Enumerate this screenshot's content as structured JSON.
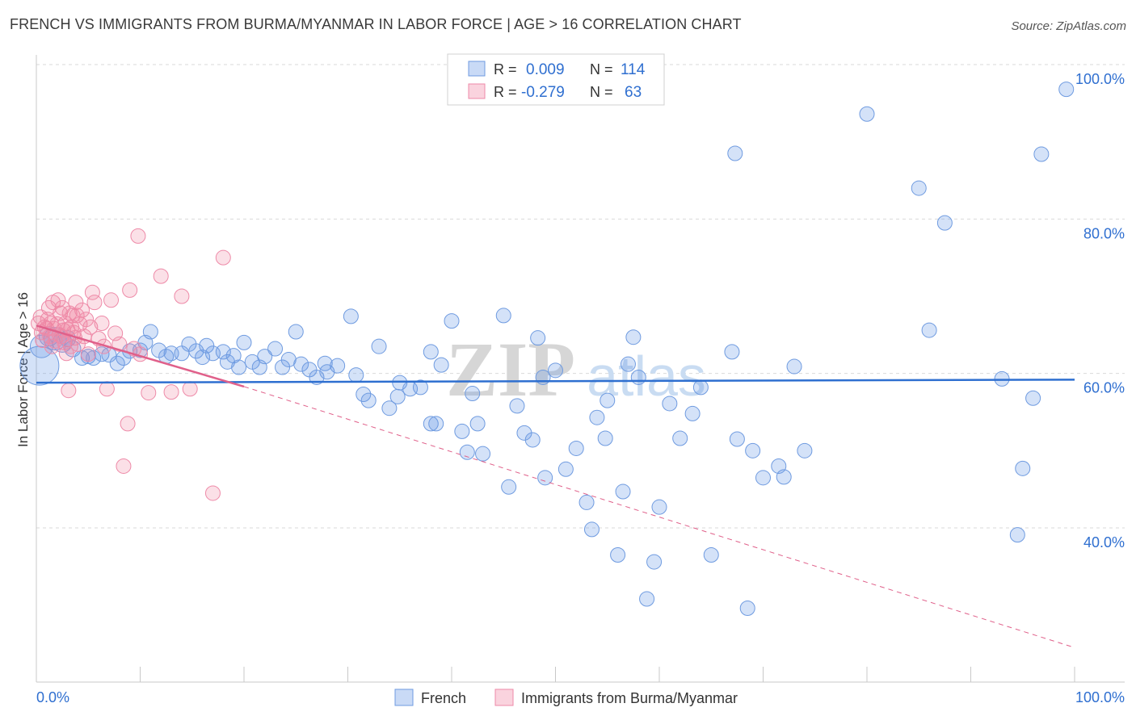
{
  "title": "FRENCH VS IMMIGRANTS FROM BURMA/MYANMAR IN LABOR FORCE | AGE > 16 CORRELATION CHART",
  "source": "Source: ZipAtlas.com",
  "watermark": {
    "zip": "ZIP",
    "atlas": "atlas"
  },
  "colors": {
    "french_fill": "rgba(100,150,230,0.28)",
    "french_stroke": "#6f9be0",
    "french_line": "#2e6fd0",
    "burma_fill": "rgba(240,130,160,0.25)",
    "burma_stroke": "#ee8aa8",
    "burma_line": "#e0608a",
    "value_text": "#2f6fd0",
    "grid": "#d9d9d9"
  },
  "legend": {
    "rows": [
      {
        "r_label": "R =",
        "r_value": "0.009",
        "n_label": "N =",
        "n_value": "114"
      },
      {
        "r_label": "R =",
        "r_value": "-0.279",
        "n_label": "N =",
        "n_value": "63"
      }
    ]
  },
  "chart_data": {
    "type": "scatter",
    "ylabel": "In Labor Force | Age > 16",
    "x_tick_labels": [
      "0.0%",
      "100.0%"
    ],
    "y_tick_labels": [
      "100.0%",
      "80.0%",
      "60.0%",
      "40.0%"
    ],
    "y_tick_values": [
      100,
      80,
      60,
      40
    ],
    "xlim": [
      0,
      100
    ],
    "ylim": [
      22,
      104
    ],
    "series": [
      {
        "name": "French",
        "R": 0.009,
        "N": 114,
        "trend": {
          "x": [
            0,
            100
          ],
          "y": [
            58.8,
            59.2
          ]
        },
        "points": [
          [
            0.3,
            61.0,
            24
          ],
          [
            0.5,
            63.5,
            14
          ],
          [
            1.2,
            64.8,
            12
          ],
          [
            1.8,
            64.5,
            14
          ],
          [
            2.5,
            64.0,
            12
          ],
          [
            3,
            64.5,
            10
          ],
          [
            3.5,
            63.2,
            10
          ],
          [
            4.4,
            62.0,
            9
          ],
          [
            5,
            62.2,
            9
          ],
          [
            5.5,
            62.0,
            9
          ],
          [
            6.3,
            62.5,
            9
          ],
          [
            7,
            62.4,
            9
          ],
          [
            7.8,
            61.3,
            9
          ],
          [
            8.4,
            62.0,
            9
          ],
          [
            9,
            62.9,
            9
          ],
          [
            10,
            63.0,
            9
          ],
          [
            10.5,
            64.0,
            9
          ],
          [
            11,
            65.4,
            9
          ],
          [
            11.8,
            63.0,
            9
          ],
          [
            12.5,
            62.2,
            9
          ],
          [
            13,
            62.6,
            9
          ],
          [
            14,
            62.6,
            9
          ],
          [
            14.7,
            63.8,
            9
          ],
          [
            15.4,
            62.9,
            9
          ],
          [
            16,
            62.1,
            9
          ],
          [
            16.4,
            63.6,
            9
          ],
          [
            17,
            62.6,
            9
          ],
          [
            18,
            62.8,
            9
          ],
          [
            18.4,
            61.5,
            9
          ],
          [
            19,
            62.3,
            9
          ],
          [
            19.5,
            60.8,
            9
          ],
          [
            20,
            64.0,
            9
          ],
          [
            20.8,
            61.5,
            9
          ],
          [
            21.5,
            60.8,
            9
          ],
          [
            22,
            62.2,
            9
          ],
          [
            23,
            63.2,
            9
          ],
          [
            23.7,
            60.8,
            9
          ],
          [
            24.3,
            61.8,
            9
          ],
          [
            25,
            65.4,
            9
          ],
          [
            25.5,
            61.2,
            9
          ],
          [
            26.3,
            60.5,
            9
          ],
          [
            27,
            59.5,
            9
          ],
          [
            27.8,
            61.3,
            9
          ],
          [
            28,
            60.2,
            9
          ],
          [
            29,
            61.0,
            9
          ],
          [
            30.3,
            67.4,
            9
          ],
          [
            30.8,
            59.8,
            9
          ],
          [
            31.5,
            57.3,
            9
          ],
          [
            32,
            56.5,
            9
          ],
          [
            33,
            63.5,
            9
          ],
          [
            34,
            55.5,
            9
          ],
          [
            34.8,
            57.0,
            9
          ],
          [
            35,
            58.8,
            9
          ],
          [
            36,
            58.0,
            9
          ],
          [
            37,
            58.2,
            9
          ],
          [
            38,
            62.8,
            9
          ],
          [
            38,
            53.5,
            9
          ],
          [
            38.5,
            53.5,
            9
          ],
          [
            39,
            61.1,
            9
          ],
          [
            40,
            66.8,
            9
          ],
          [
            41,
            52.5,
            9
          ],
          [
            41.5,
            49.8,
            9
          ],
          [
            42,
            57.4,
            9
          ],
          [
            42.5,
            53.5,
            9
          ],
          [
            43,
            49.6,
            9
          ],
          [
            45,
            67.5,
            9
          ],
          [
            45.5,
            45.3,
            9
          ],
          [
            46.3,
            55.8,
            9
          ],
          [
            47,
            52.3,
            9
          ],
          [
            47.8,
            51.4,
            9
          ],
          [
            48.3,
            64.6,
            9
          ],
          [
            48.8,
            59.5,
            9
          ],
          [
            49,
            46.5,
            9
          ],
          [
            50,
            60.4,
            9
          ],
          [
            51,
            47.6,
            9
          ],
          [
            52,
            50.3,
            9
          ],
          [
            53,
            43.3,
            9
          ],
          [
            53.5,
            39.8,
            9
          ],
          [
            54,
            54.3,
            9
          ],
          [
            54.8,
            51.6,
            9
          ],
          [
            55,
            56.5,
            9
          ],
          [
            56,
            36.5,
            9
          ],
          [
            56.5,
            44.7,
            9
          ],
          [
            57,
            61.2,
            9
          ],
          [
            57.5,
            64.7,
            9
          ],
          [
            58,
            59.5,
            9
          ],
          [
            58.8,
            30.8,
            9
          ],
          [
            59.5,
            35.6,
            9
          ],
          [
            60,
            42.7,
            9
          ],
          [
            61,
            56.1,
            9
          ],
          [
            62,
            51.6,
            9
          ],
          [
            63.2,
            54.8,
            9
          ],
          [
            64,
            58.2,
            9
          ],
          [
            65,
            36.5,
            9
          ],
          [
            67,
            62.8,
            9
          ],
          [
            67.3,
            88.5,
            9
          ],
          [
            67.5,
            51.5,
            9
          ],
          [
            68.5,
            29.6,
            9
          ],
          [
            69,
            50.0,
            9
          ],
          [
            70,
            46.5,
            9
          ],
          [
            71.5,
            48.0,
            9
          ],
          [
            72,
            46.6,
            9
          ],
          [
            73,
            60.9,
            9
          ],
          [
            74,
            50.0,
            9
          ],
          [
            80,
            93.6,
            9
          ],
          [
            85,
            84.0,
            9
          ],
          [
            86,
            65.6,
            9
          ],
          [
            87.5,
            79.5,
            9
          ],
          [
            93,
            59.3,
            9
          ],
          [
            94.5,
            39.1,
            9
          ],
          [
            95,
            47.7,
            9
          ],
          [
            96,
            56.8,
            9
          ],
          [
            96.8,
            88.4,
            9
          ],
          [
            99.2,
            96.8,
            9
          ]
        ]
      },
      {
        "name": "Immigrants from Burma/Myanmar",
        "R": -0.279,
        "N": 63,
        "trend": {
          "x": [
            0,
            20
          ],
          "y": [
            66.2,
            58.3
          ]
        },
        "trend_dashed": {
          "x": [
            20,
            100
          ],
          "y": [
            58.3,
            24.5
          ]
        },
        "points": [
          [
            0.2,
            66.5,
            9
          ],
          [
            0.4,
            67.3,
            9
          ],
          [
            0.5,
            65.3,
            9
          ],
          [
            0.6,
            64.3,
            9
          ],
          [
            0.8,
            66.0,
            9
          ],
          [
            1.0,
            65.8,
            9
          ],
          [
            1.1,
            67.0,
            9
          ],
          [
            1.2,
            68.5,
            9
          ],
          [
            1.3,
            64.8,
            9
          ],
          [
            1.4,
            66.5,
            9
          ],
          [
            1.5,
            63.5,
            9
          ],
          [
            1.6,
            69.2,
            9
          ],
          [
            1.7,
            65.8,
            9
          ],
          [
            1.8,
            64.2,
            9
          ],
          [
            2.0,
            66.4,
            9
          ],
          [
            2.1,
            69.5,
            9
          ],
          [
            2.2,
            65.0,
            9
          ],
          [
            2.3,
            67.8,
            9
          ],
          [
            2.4,
            64.8,
            9
          ],
          [
            2.5,
            68.5,
            9
          ],
          [
            2.6,
            65.6,
            9
          ],
          [
            2.7,
            64.0,
            9
          ],
          [
            2.8,
            66.5,
            9
          ],
          [
            2.9,
            62.6,
            9
          ],
          [
            3.0,
            65.7,
            9
          ],
          [
            3.1,
            57.8,
            9
          ],
          [
            3.2,
            67.8,
            9
          ],
          [
            3.3,
            63.5,
            9
          ],
          [
            3.4,
            66.0,
            9
          ],
          [
            3.5,
            67.5,
            9
          ],
          [
            3.6,
            65.3,
            9
          ],
          [
            3.7,
            64.6,
            9
          ],
          [
            3.8,
            69.2,
            9
          ],
          [
            3.9,
            67.5,
            9
          ],
          [
            4.0,
            63.8,
            9
          ],
          [
            4.2,
            66.4,
            9
          ],
          [
            4.4,
            68.2,
            9
          ],
          [
            4.6,
            64.8,
            9
          ],
          [
            4.8,
            67.0,
            9
          ],
          [
            5.0,
            62.5,
            9
          ],
          [
            5.2,
            66.0,
            9
          ],
          [
            5.4,
            70.5,
            9
          ],
          [
            5.6,
            69.2,
            9
          ],
          [
            6.0,
            64.5,
            9
          ],
          [
            6.3,
            66.5,
            9
          ],
          [
            6.5,
            63.5,
            9
          ],
          [
            6.8,
            58.0,
            9
          ],
          [
            7.2,
            69.5,
            9
          ],
          [
            7.6,
            65.2,
            9
          ],
          [
            8.0,
            63.8,
            9
          ],
          [
            8.4,
            48.0,
            9
          ],
          [
            8.8,
            53.5,
            9
          ],
          [
            9.0,
            70.8,
            9
          ],
          [
            9.4,
            63.2,
            9
          ],
          [
            9.8,
            77.8,
            9
          ],
          [
            10.0,
            62.5,
            9
          ],
          [
            10.8,
            57.5,
            9
          ],
          [
            12.0,
            72.6,
            9
          ],
          [
            13.0,
            57.6,
            9
          ],
          [
            14.0,
            70.0,
            9
          ],
          [
            14.8,
            58.0,
            9
          ],
          [
            17.0,
            44.5,
            9
          ],
          [
            18.0,
            75.0,
            9
          ]
        ]
      }
    ]
  }
}
